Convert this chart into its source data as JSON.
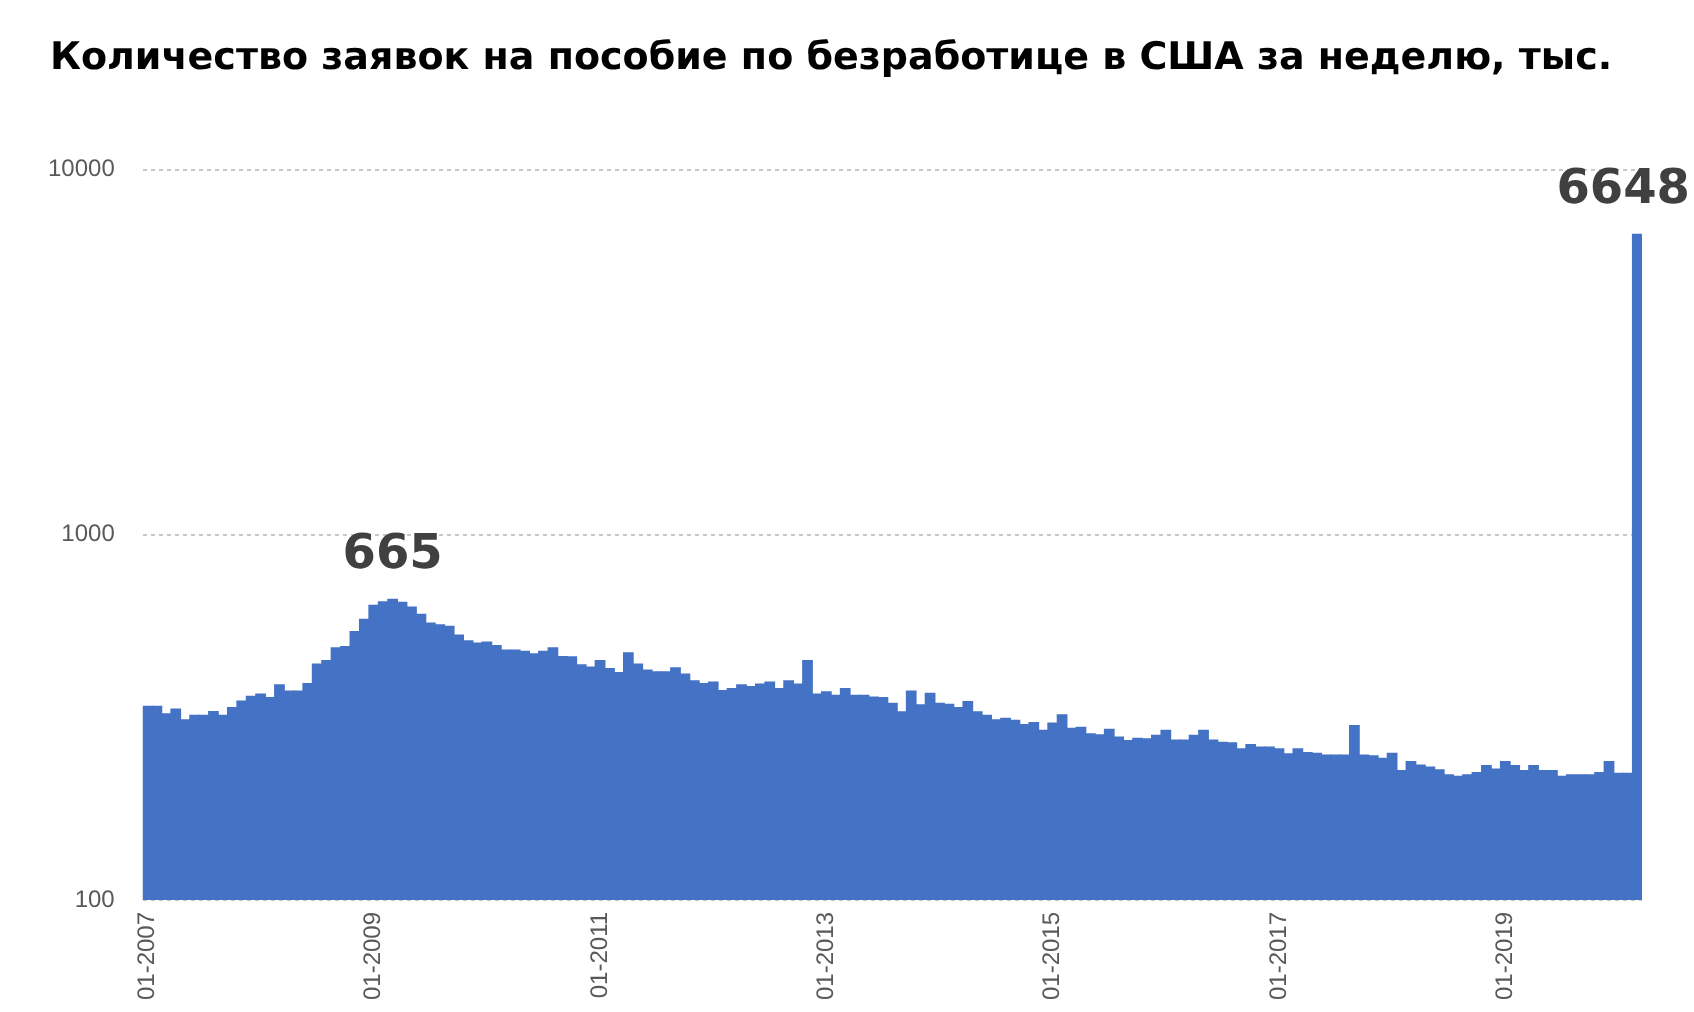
{
  "chart_data": {
    "type": "bar",
    "title": "Количество заявок на пособие по безработице в США за неделю, тыс.",
    "categories": [
      "01-2007",
      null,
      null,
      null,
      null,
      null,
      null,
      null,
      null,
      null,
      null,
      null,
      null,
      null,
      null,
      null,
      null,
      null,
      null,
      null,
      null,
      null,
      null,
      null,
      "01-2009",
      null,
      null,
      null,
      null,
      null,
      null,
      null,
      null,
      null,
      null,
      null,
      null,
      null,
      null,
      null,
      null,
      null,
      null,
      null,
      null,
      null,
      null,
      null,
      "01-2011",
      null,
      null,
      null,
      null,
      null,
      null,
      null,
      null,
      null,
      null,
      null,
      null,
      null,
      null,
      null,
      null,
      null,
      null,
      null,
      null,
      null,
      null,
      null,
      "01-2013",
      null,
      null,
      null,
      null,
      null,
      null,
      null,
      null,
      null,
      null,
      null,
      null,
      null,
      null,
      null,
      null,
      null,
      null,
      null,
      null,
      null,
      null,
      null,
      "01-2015",
      null,
      null,
      null,
      null,
      null,
      null,
      null,
      null,
      null,
      null,
      null,
      null,
      null,
      null,
      null,
      null,
      null,
      null,
      null,
      null,
      null,
      null,
      null,
      "01-2017",
      null,
      null,
      null,
      null,
      null,
      null,
      null,
      null,
      null,
      null,
      null,
      null,
      null,
      null,
      null,
      null,
      null,
      null,
      null,
      null,
      null,
      null,
      null,
      "01-2019",
      null,
      null,
      null,
      null,
      null,
      null,
      null,
      null,
      null,
      null,
      null,
      null,
      null,
      null
    ],
    "series": [
      {
        "color": "#4472c4",
        "values": [
          339,
          339,
          323,
          333,
          311,
          320,
          320,
          328,
          320,
          336,
          350,
          361,
          366,
          358,
          388,
          373,
          373,
          391,
          442,
          452,
          490,
          494,
          543,
          586,
          641,
          655,
          665,
          653,
          633,
          605,
          573,
          566,
          561,
          531,
          512,
          505,
          508,
          497,
          483,
          483,
          479,
          472,
          479,
          490,
          464,
          463,
          440,
          434,
          452,
          430,
          419,
          475,
          442,
          426,
          421,
          421,
          432,
          415,
          398,
          391,
          395,
          374,
          379,
          388,
          384,
          390,
          395,
          379,
          398,
          390,
          452,
          366,
          371,
          363,
          379,
          363,
          363,
          359,
          358,
          345,
          327,
          373,
          342,
          368,
          345,
          343,
          336,
          349,
          327,
          320,
          311,
          314,
          310,
          302,
          306,
          291,
          305,
          321,
          295,
          297,
          285,
          283,
          293,
          279,
          273,
          277,
          276,
          282,
          291,
          274,
          274,
          282,
          291,
          274,
          270,
          269,
          259,
          266,
          262,
          262,
          259,
          251,
          259,
          253,
          252,
          249,
          249,
          249,
          300,
          249,
          248,
          244,
          252,
          226,
          239,
          234,
          231,
          227,
          220,
          218,
          220,
          223,
          233,
          228,
          239,
          233,
          226,
          233,
          226,
          226,
          218,
          220,
          220,
          220,
          223,
          239,
          222,
          222,
          6648
        ],
        "value_labels": [
          null,
          null,
          null,
          null,
          null,
          null,
          null,
          null,
          null,
          null,
          null,
          null,
          null,
          null,
          null,
          null,
          null,
          null,
          null,
          null,
          null,
          null,
          null,
          null,
          null,
          null,
          "665",
          null,
          null,
          null,
          null,
          null,
          null,
          null,
          null,
          null,
          null,
          null,
          null,
          null,
          null,
          null,
          null,
          null,
          null,
          null,
          null,
          null,
          null,
          null,
          null,
          null,
          null,
          null,
          null,
          null,
          null,
          null,
          null,
          null,
          null,
          null,
          null,
          null,
          null,
          null,
          null,
          null,
          null,
          null,
          null,
          null,
          null,
          null,
          null,
          null,
          null,
          null,
          null,
          null,
          null,
          null,
          null,
          null,
          null,
          null,
          null,
          null,
          null,
          null,
          null,
          null,
          null,
          null,
          null,
          null,
          null,
          null,
          null,
          null,
          null,
          null,
          null,
          null,
          null,
          null,
          null,
          null,
          null,
          null,
          null,
          null,
          null,
          null,
          null,
          null,
          null,
          null,
          null,
          null,
          null,
          null,
          null,
          null,
          null,
          null,
          null,
          null,
          null,
          null,
          null,
          null,
          null,
          null,
          null,
          null,
          null,
          null,
          null,
          null,
          null,
          null,
          null,
          null,
          null,
          null,
          null,
          null,
          null,
          null,
          null,
          null,
          null,
          null,
          null,
          null,
          null,
          null,
          "6648"
        ]
      }
    ],
    "log": "y",
    "ylim": [
      100,
      10000
    ],
    "yticks": [
      100,
      1000,
      10000
    ],
    "grid": "y",
    "legend": false
  }
}
